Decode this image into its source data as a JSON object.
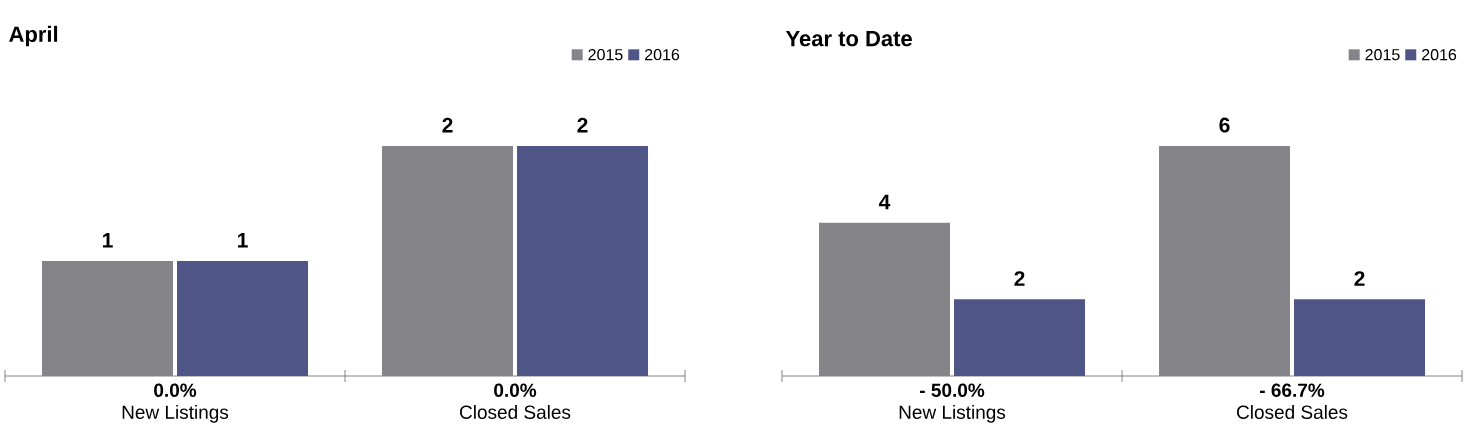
{
  "chart_data": [
    {
      "type": "bar",
      "title": "April",
      "categories": [
        "New Listings",
        "Closed Sales"
      ],
      "series": [
        {
          "name": "2015",
          "color": "#858589",
          "values": [
            1,
            2
          ]
        },
        {
          "name": "2016",
          "color": "#4f5587",
          "values": [
            1,
            2
          ]
        }
      ],
      "data_labels": true,
      "legend": "top right",
      "annotations": [
        "0.0%",
        "0.0%"
      ]
    },
    {
      "type": "bar",
      "title": "Year to Date",
      "categories": [
        "New Listings",
        "Closed Sales"
      ],
      "series": [
        {
          "name": "2015",
          "color": "#858589",
          "values": [
            4,
            6
          ]
        },
        {
          "name": "2016",
          "color": "#4f5587",
          "values": [
            2,
            2
          ]
        }
      ],
      "data_labels": true,
      "legend": "top right",
      "annotations": [
        "- 50.0%",
        "- 66.7%"
      ]
    }
  ]
}
